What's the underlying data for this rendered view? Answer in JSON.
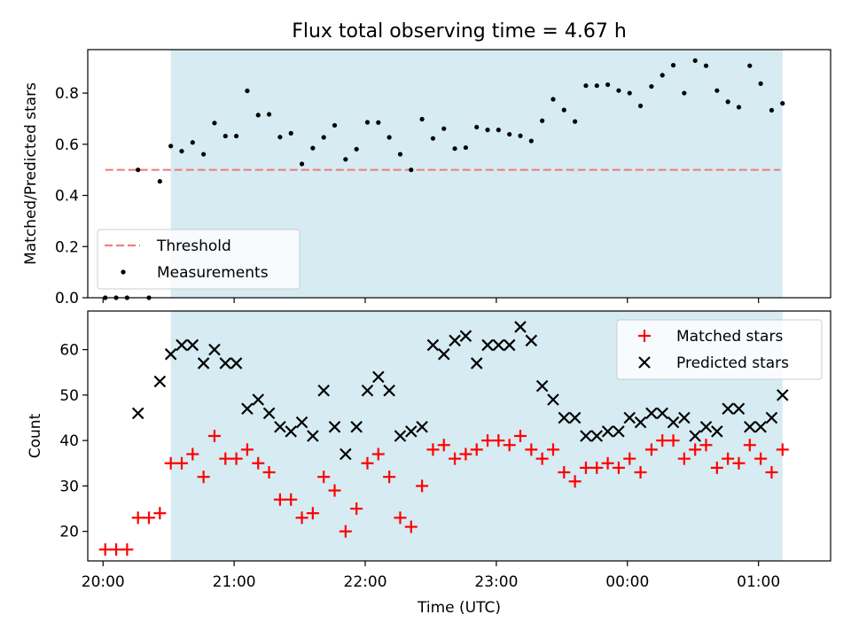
{
  "figure_title": "Flux total observing time = 4.67 h",
  "colors": {
    "shade": "#add8e6",
    "threshold": "#f08080",
    "measurement": "#000000",
    "matched": "#ff0000",
    "predicted": "#000000"
  },
  "chart_data": [
    {
      "type": "scatter",
      "ylabel": "Matched/Predicted stars",
      "ylim": [
        0,
        0.97
      ],
      "yticks": [
        0,
        0.2,
        0.4,
        0.6,
        0.8
      ],
      "ytick_labels": [
        "0.0",
        "0.2",
        "0.4",
        "0.6",
        "0.8"
      ],
      "xlim": [
        "19:53",
        "01:33"
      ],
      "xticks": [
        "20:00",
        "21:00",
        "22:00",
        "23:00",
        "00:00",
        "01:00"
      ],
      "shaded_interval": [
        "20:31",
        "01:11"
      ],
      "legend_position": "lower left",
      "threshold": {
        "name": "Threshold",
        "value": 0.5,
        "x_range": [
          "20:01",
          "01:10"
        ]
      },
      "series": [
        {
          "name": "Measurements",
          "x": [
            "20:01",
            "20:06",
            "20:11",
            "20:16",
            "20:21",
            "20:26",
            "20:31",
            "20:36",
            "20:41",
            "20:46",
            "20:51",
            "20:56",
            "21:01",
            "21:06",
            "21:11",
            "21:16",
            "21:21",
            "21:26",
            "21:31",
            "21:36",
            "21:41",
            "21:46",
            "21:51",
            "21:56",
            "22:01",
            "22:06",
            "22:11",
            "22:16",
            "22:21",
            "22:26",
            "22:31",
            "22:36",
            "22:41",
            "22:46",
            "22:51",
            "22:56",
            "23:01",
            "23:06",
            "23:11",
            "23:16",
            "23:21",
            "23:26",
            "23:31",
            "23:36",
            "23:41",
            "23:46",
            "23:51",
            "23:56",
            "00:01",
            "00:06",
            "00:11",
            "00:16",
            "00:21",
            "00:26",
            "00:31",
            "00:36",
            "00:41",
            "00:46",
            "00:51",
            "00:56",
            "01:01",
            "01:06",
            "01:11"
          ],
          "values": [
            0.0,
            0.0,
            0.0,
            0.5,
            0.0,
            0.455,
            0.593,
            0.573,
            0.607,
            0.561,
            0.683,
            0.632,
            0.632,
            0.809,
            0.714,
            0.717,
            0.628,
            0.643,
            0.523,
            0.585,
            0.627,
            0.674,
            0.541,
            0.581,
            0.686,
            0.685,
            0.627,
            0.561,
            0.5,
            0.698,
            0.623,
            0.661,
            0.583,
            0.587,
            0.667,
            0.656,
            0.656,
            0.639,
            0.633,
            0.613,
            0.692,
            0.776,
            0.734,
            0.689,
            0.829,
            0.829,
            0.833,
            0.81,
            0.8,
            0.75,
            0.826,
            0.87,
            0.909,
            0.8,
            0.927,
            0.907,
            0.81,
            0.766,
            0.745,
            0.907,
            0.837,
            0.733,
            0.76
          ]
        }
      ]
    },
    {
      "type": "scatter",
      "ylabel": "Count",
      "xlabel": "Time (UTC)",
      "ylim": [
        13.5,
        68.5
      ],
      "yticks": [
        20,
        30,
        40,
        50,
        60
      ],
      "ytick_labels": [
        "20",
        "30",
        "40",
        "50",
        "60"
      ],
      "xlim": [
        "19:53",
        "01:33"
      ],
      "xticks": [
        "20:00",
        "21:00",
        "22:00",
        "23:00",
        "00:00",
        "01:00"
      ],
      "xtick_labels": [
        "20:00",
        "21:00",
        "22:00",
        "23:00",
        "00:00",
        "01:00"
      ],
      "shaded_interval": [
        "20:31",
        "01:11"
      ],
      "legend_position": "upper right",
      "series": [
        {
          "name": "Matched stars",
          "marker": "plus",
          "x": [
            "20:01",
            "20:06",
            "20:11",
            "20:16",
            "20:21",
            "20:26",
            "20:31",
            "20:36",
            "20:41",
            "20:46",
            "20:51",
            "20:56",
            "21:01",
            "21:06",
            "21:11",
            "21:16",
            "21:21",
            "21:26",
            "21:31",
            "21:36",
            "21:41",
            "21:46",
            "21:51",
            "21:56",
            "22:01",
            "22:06",
            "22:11",
            "22:16",
            "22:21",
            "22:26",
            "22:31",
            "22:36",
            "22:41",
            "22:46",
            "22:51",
            "22:56",
            "23:01",
            "23:06",
            "23:11",
            "23:16",
            "23:21",
            "23:26",
            "23:31",
            "23:36",
            "23:41",
            "23:46",
            "23:51",
            "23:56",
            "00:01",
            "00:06",
            "00:11",
            "00:16",
            "00:21",
            "00:26",
            "00:31",
            "00:36",
            "00:41",
            "00:46",
            "00:51",
            "00:56",
            "01:01",
            "01:06",
            "01:11"
          ],
          "values": [
            16,
            16,
            16,
            23,
            23,
            24,
            35,
            35,
            37,
            32,
            41,
            36,
            36,
            38,
            35,
            33,
            27,
            27,
            23,
            24,
            32,
            29,
            20,
            25,
            35,
            37,
            32,
            23,
            21,
            30,
            38,
            39,
            36,
            37,
            38,
            40,
            40,
            39,
            41,
            38,
            36,
            38,
            33,
            31,
            34,
            34,
            35,
            34,
            36,
            33,
            38,
            40,
            40,
            36,
            38,
            39,
            34,
            36,
            35,
            39,
            36,
            33,
            38
          ]
        },
        {
          "name": "Predicted stars",
          "marker": "x",
          "x": [
            "20:16",
            "20:26",
            "20:31",
            "20:36",
            "20:41",
            "20:46",
            "20:51",
            "20:56",
            "21:01",
            "21:06",
            "21:11",
            "21:16",
            "21:21",
            "21:26",
            "21:31",
            "21:36",
            "21:41",
            "21:46",
            "21:51",
            "21:56",
            "22:01",
            "22:06",
            "22:11",
            "22:16",
            "22:21",
            "22:26",
            "22:31",
            "22:36",
            "22:41",
            "22:46",
            "22:51",
            "22:56",
            "23:01",
            "23:06",
            "23:11",
            "23:16",
            "23:21",
            "23:26",
            "23:31",
            "23:36",
            "23:41",
            "23:46",
            "23:51",
            "23:56",
            "00:01",
            "00:06",
            "00:11",
            "00:16",
            "00:21",
            "00:26",
            "00:31",
            "00:36",
            "00:41",
            "00:46",
            "00:51",
            "00:56",
            "01:01",
            "01:06",
            "01:11"
          ],
          "values": [
            46,
            53,
            59,
            61,
            61,
            57,
            60,
            57,
            57,
            47,
            49,
            46,
            43,
            42,
            44,
            41,
            51,
            43,
            37,
            43,
            51,
            54,
            51,
            41,
            42,
            43,
            61,
            59,
            62,
            63,
            57,
            61,
            61,
            61,
            65,
            62,
            52,
            49,
            45,
            45,
            41,
            41,
            42,
            42,
            45,
            44,
            46,
            46,
            44,
            45,
            41,
            43,
            42,
            47,
            47,
            43,
            43,
            45,
            50
          ]
        }
      ]
    }
  ]
}
